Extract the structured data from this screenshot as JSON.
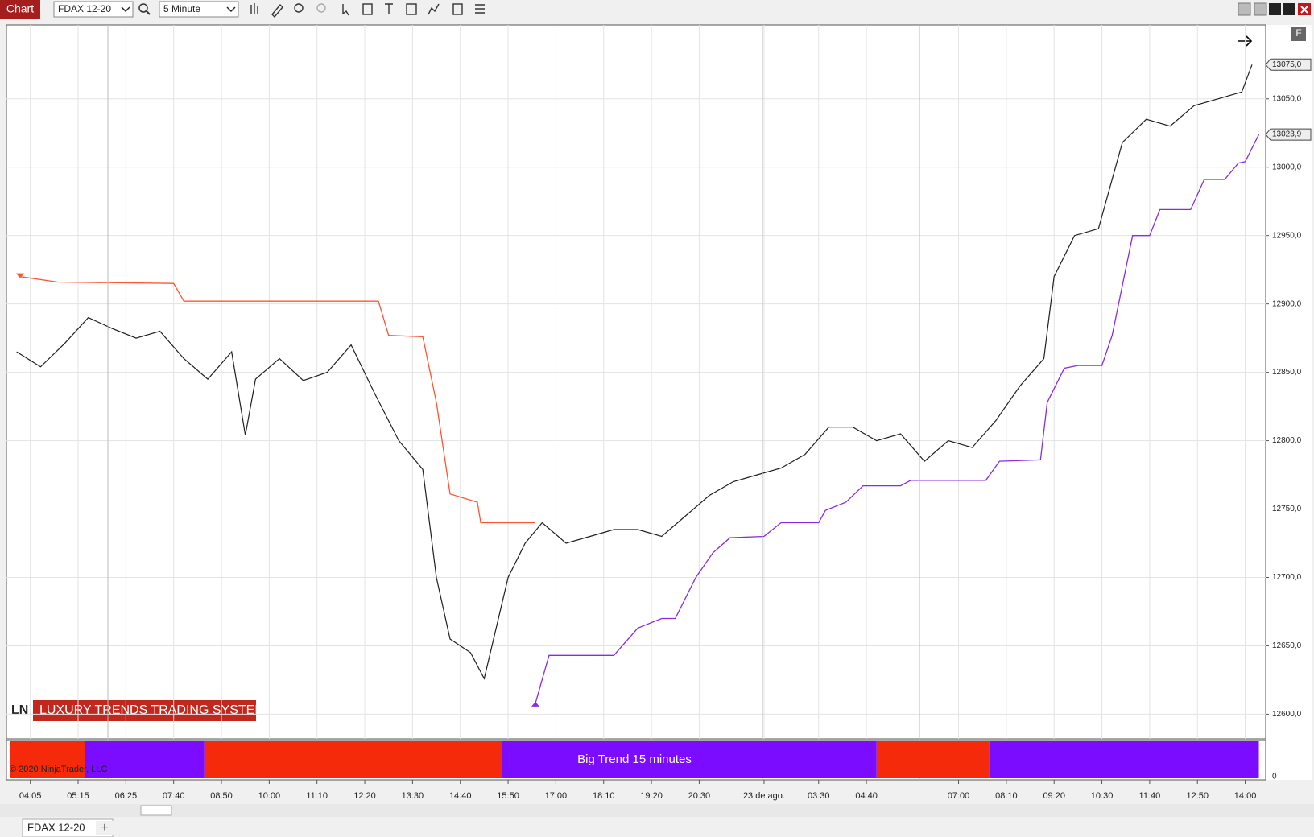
{
  "toolbar": {
    "tab_label": "Chart",
    "instrument": "FDAX 12-20",
    "interval": "5 Minute"
  },
  "chart_data": {
    "type": "line",
    "series": [
      {
        "color": "#1f1f1f",
        "x": [
          -4,
          3,
          10,
          17,
          24,
          31,
          38,
          45,
          52,
          59,
          63,
          66,
          73,
          80,
          87,
          94,
          101,
          108,
          115,
          119,
          123,
          129,
          133,
          140,
          145,
          150,
          157,
          164,
          171,
          178,
          185,
          192,
          199,
          206,
          213,
          220,
          227,
          234,
          241,
          248,
          255,
          262,
          269,
          276,
          283,
          290,
          297,
          300,
          306,
          313,
          320,
          327,
          334,
          341,
          348,
          355,
          358
        ],
        "values": [
          12865,
          12854,
          12871,
          12890,
          12882,
          12875,
          12880,
          12860,
          12845,
          12865,
          12804,
          12845,
          12860,
          12844,
          12850,
          12870,
          12834,
          12800,
          12779,
          12700,
          12655,
          12645,
          12626,
          12700,
          12725,
          12740,
          12725,
          12730,
          12735,
          12735,
          12730,
          12745,
          12760,
          12770,
          12775,
          12780,
          12790,
          12810,
          12810,
          12800,
          12805,
          12785,
          12800,
          12795,
          12815,
          12840,
          12860,
          12920,
          12950,
          12955,
          13018,
          13035,
          13030,
          13045,
          13050,
          13055,
          13075
        ]
      },
      {
        "color": "#ff5533",
        "x": [
          -3,
          8,
          42,
          45,
          102,
          105,
          115,
          119,
          123,
          131,
          132,
          148
        ],
        "values": [
          12920,
          12916,
          12915,
          12902,
          12902,
          12877,
          12876,
          12828,
          12761,
          12755,
          12740,
          12740
        ]
      },
      {
        "color": "#8a2be2",
        "x": [
          148,
          152,
          171,
          178,
          185,
          189,
          195,
          200,
          205,
          215,
          220,
          231,
          233,
          239,
          244,
          255,
          258,
          280,
          284,
          296,
          298,
          303,
          307,
          314,
          317,
          323,
          328,
          331,
          340,
          344,
          350,
          354,
          356,
          360
        ],
        "values": [
          12608,
          12643,
          12643,
          12663,
          12670,
          12670,
          12700,
          12718,
          12729,
          12730,
          12740,
          12740,
          12749,
          12755,
          12767,
          12767,
          12771,
          12771,
          12785,
          12786,
          12828,
          12853,
          12855,
          12855,
          12877,
          12950,
          12950,
          12969,
          12969,
          12991,
          12991,
          13003,
          13004,
          13023.9
        ]
      }
    ],
    "xlim": [
      -7,
      362
    ],
    "xticks": [
      {
        "value": 0,
        "label": "04:05"
      },
      {
        "value": 14,
        "label": "05:15"
      },
      {
        "value": 28,
        "label": "06:25"
      },
      {
        "value": 42,
        "label": "07:40"
      },
      {
        "value": 56,
        "label": "08:50"
      },
      {
        "value": 70,
        "label": "10:00"
      },
      {
        "value": 84,
        "label": "11:10"
      },
      {
        "value": 98,
        "label": "12:20"
      },
      {
        "value": 112,
        "label": "13:30"
      },
      {
        "value": 126,
        "label": "14:40"
      },
      {
        "value": 140,
        "label": "15:50"
      },
      {
        "value": 154,
        "label": "17:00"
      },
      {
        "value": 168,
        "label": "18:10"
      },
      {
        "value": 182,
        "label": "19:20"
      },
      {
        "value": 196,
        "label": "20:30"
      },
      {
        "value": 215,
        "label": "23 de ago."
      },
      {
        "value": 231,
        "label": "03:30"
      },
      {
        "value": 245,
        "label": "04:40"
      },
      {
        "value": 272,
        "label": "07:00"
      },
      {
        "value": 286,
        "label": "08:10"
      },
      {
        "value": 300,
        "label": "09:20"
      },
      {
        "value": 314,
        "label": "10:30"
      },
      {
        "value": 328,
        "label": "11:40"
      },
      {
        "value": 342,
        "label": "12:50"
      },
      {
        "value": 356,
        "label": "14:00"
      }
    ],
    "ylim": [
      12582,
      13104
    ],
    "yticks": [
      {
        "value": 12600,
        "label": "12600,0"
      },
      {
        "value": 12650,
        "label": "12650,0"
      },
      {
        "value": 12700,
        "label": "12700,0"
      },
      {
        "value": 12750,
        "label": "12750,0"
      },
      {
        "value": 12800,
        "label": "12800,0"
      },
      {
        "value": 12850,
        "label": "12850,0"
      },
      {
        "value": 12900,
        "label": "12900,0"
      },
      {
        "value": 12950,
        "label": "12950,0"
      },
      {
        "value": 13000,
        "label": "13000,0"
      },
      {
        "value": 13050,
        "label": "13050,0"
      }
    ],
    "grid": true,
    "price_markers": [
      {
        "value": 13075,
        "label": "13075,0"
      },
      {
        "value": 13023.9,
        "label": "13023,9"
      }
    ],
    "badge": {
      "short": "LN",
      "title": "LUXURY TRENDS TRADING SYSTEM"
    },
    "copyright": "© 2020 NinjaTrader, LLC",
    "trend_panel": {
      "label": "Big Trend 15 minutes",
      "yticks": [
        0
      ],
      "segments": [
        {
          "start": -6,
          "end": 16,
          "color": "#f52a0a"
        },
        {
          "start": 16,
          "end": 51,
          "color": "#7b0cff"
        },
        {
          "start": 51,
          "end": 138,
          "color": "#f52a0a"
        },
        {
          "start": 138,
          "end": 248,
          "color": "#7b0cff"
        },
        {
          "start": 248,
          "end": 281,
          "color": "#f52a0a"
        },
        {
          "start": 281,
          "end": 360,
          "color": "#7b0cff"
        }
      ]
    }
  },
  "tabs": [
    "FDAX 12-20"
  ],
  "add_tab": "+",
  "panel_button": "F"
}
